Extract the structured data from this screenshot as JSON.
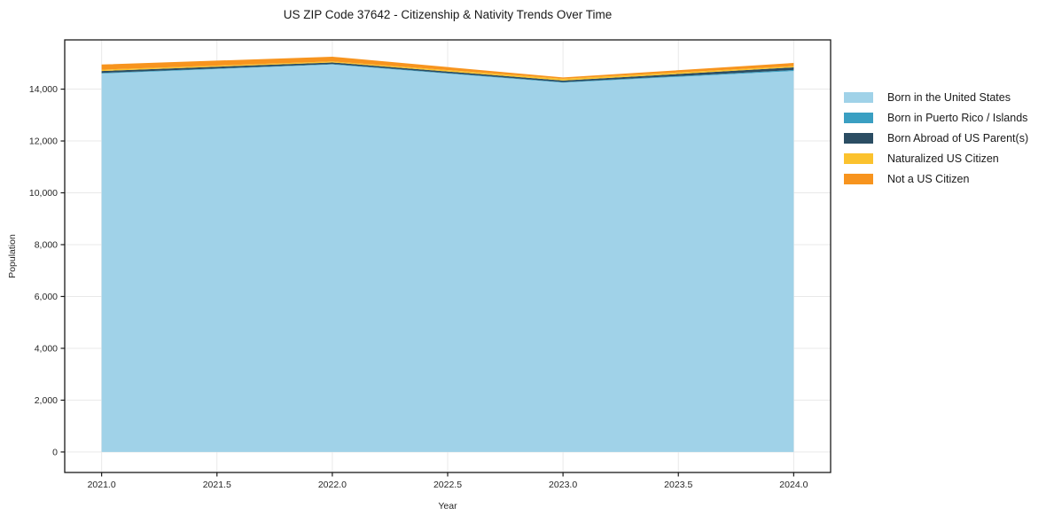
{
  "chart_data": {
    "type": "area",
    "stacked": true,
    "title": "US ZIP Code 37642 - Citizenship & Nativity Trends Over Time",
    "xlabel": "Year",
    "ylabel": "Population",
    "x": [
      2021,
      2022,
      2023,
      2024
    ],
    "series": [
      {
        "name": "Born in the United States",
        "color": "#a0d2e8",
        "values": [
          14600,
          14950,
          14250,
          14700
        ]
      },
      {
        "name": "Born in Puerto Rico / Islands",
        "color": "#3a9fc2",
        "values": [
          25,
          20,
          20,
          40
        ]
      },
      {
        "name": "Born Abroad of US Parent(s)",
        "color": "#2b4d63",
        "values": [
          75,
          60,
          60,
          100
        ]
      },
      {
        "name": "Naturalized US Citizen",
        "color": "#fbc22e",
        "values": [
          50,
          40,
          70,
          50
        ]
      },
      {
        "name": "Not a US Citizen",
        "color": "#f7941e",
        "values": [
          200,
          180,
          50,
          120
        ]
      }
    ],
    "xlim": [
      2020.84,
      2024.16
    ],
    "ylim": [
      -790,
      15900
    ],
    "x_ticks": [
      2021.0,
      2021.5,
      2022.0,
      2022.5,
      2023.0,
      2023.5,
      2024.0
    ],
    "y_ticks": [
      0,
      2000,
      4000,
      6000,
      8000,
      10000,
      12000,
      14000
    ],
    "grid": true,
    "legend_position": "center right outside",
    "colors": {
      "spine": "#1a1a1a",
      "grid": "#e9e9e9",
      "tick_label": "#262626",
      "background": "#ffffff"
    }
  }
}
